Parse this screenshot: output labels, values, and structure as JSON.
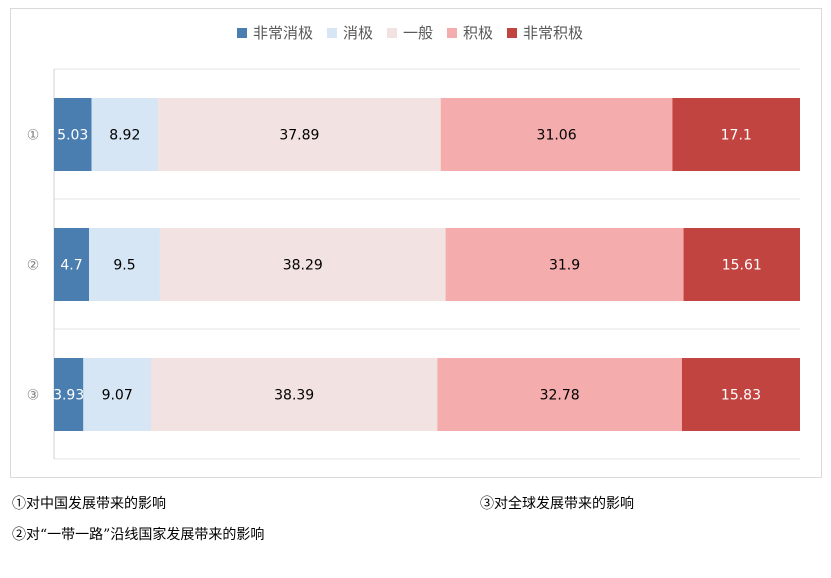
{
  "chart_data": {
    "type": "bar",
    "orientation": "horizontal",
    "stacked": true,
    "normalized_percent": true,
    "categories": [
      "①",
      "②",
      "③"
    ],
    "series": [
      {
        "name": "非常消极",
        "color": "#4a7db0",
        "values": [
          5.03,
          4.7,
          3.93
        ],
        "label_color": "#ffffff"
      },
      {
        "name": "消极",
        "color": "#d7e6f4",
        "values": [
          8.92,
          9.5,
          9.07
        ],
        "label_color": "#000000"
      },
      {
        "name": "一般",
        "color": "#f3e2e2",
        "values": [
          37.89,
          38.29,
          38.39
        ],
        "label_color": "#000000"
      },
      {
        "name": "积极",
        "color": "#f4acac",
        "values": [
          31.06,
          31.9,
          32.78
        ],
        "label_color": "#000000"
      },
      {
        "name": "非常积极",
        "color": "#c24440",
        "values": [
          17.1,
          15.61,
          15.83
        ],
        "label_color": "#ffffff"
      }
    ],
    "data_labels": [
      [
        "5.03",
        "8.92",
        "37.89",
        "31.06",
        "17.1"
      ],
      [
        "4.7",
        "9.5",
        "38.29",
        "31.9",
        "15.61"
      ],
      [
        "3.93",
        "9.07",
        "38.39",
        "32.78",
        "15.83"
      ]
    ],
    "xlim": [
      0,
      100
    ],
    "legend_position": "top-center",
    "grid": true
  },
  "notes": {
    "note1": "①对中国发展带来的影响",
    "note2": "②对“一带一路”沿线国家发展带来的影响",
    "note3": "③对全球发展带来的影响"
  }
}
